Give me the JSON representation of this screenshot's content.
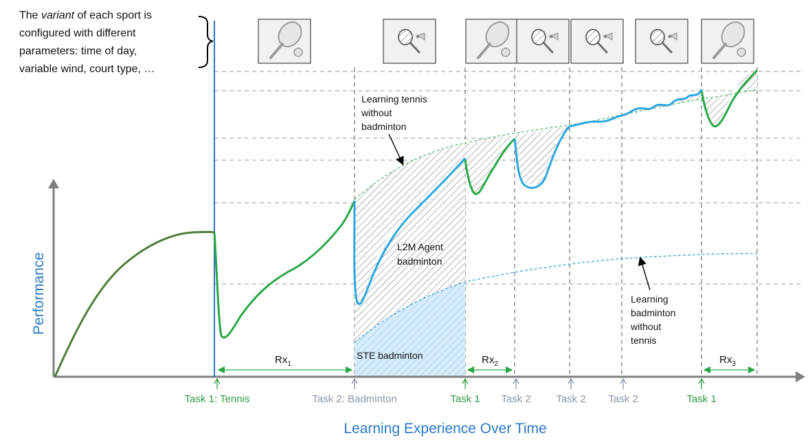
{
  "note": {
    "line1_pre": "The ",
    "line1_italic": "variant",
    "line1_post": " of each sport is",
    "line2": "configured with different",
    "line3": "parameters: time of day,",
    "line4": "variable wind, court type, …"
  },
  "axes": {
    "ylabel": "Performance",
    "xlabel": "Learning Experience Over Time"
  },
  "annotations": {
    "tennis_without_badminton": [
      "Learning tennis",
      "without",
      "badminton"
    ],
    "l2m_agent": [
      "L2M Agent",
      "badminton"
    ],
    "ste_badminton": "STE badminton",
    "badminton_without_tennis": [
      "Learning",
      "badminton",
      "without",
      "tennis"
    ]
  },
  "rx_labels": [
    {
      "base": "Rx",
      "sub": "1"
    },
    {
      "base": "Rx",
      "sub": "2"
    },
    {
      "base": "Rx",
      "sub": "3"
    }
  ],
  "tasks": [
    {
      "label": "Task 1: Tennis",
      "sport": "tennis"
    },
    {
      "label": "Task 2: Badminton",
      "sport": "badminton"
    },
    {
      "label": "Task 1",
      "sport": "tennis"
    },
    {
      "label": "Task 2",
      "sport": "badminton"
    },
    {
      "label": "Task 2",
      "sport": "badminton"
    },
    {
      "label": "Task 2",
      "sport": "badminton"
    },
    {
      "label": "Task 1",
      "sport": "tennis"
    }
  ],
  "icons": [
    "tennis-racket-icon",
    "badminton-racket-icon",
    "tennis-racket-icon",
    "badminton-racket-icon",
    "badminton-racket-icon",
    "badminton-racket-icon",
    "tennis-racket-icon"
  ],
  "colors": {
    "tennis": "#27a844",
    "badminton": "#2aa6e0",
    "initial": "#4f7d3a",
    "axis_label": "#2a78c4",
    "task_tennis": "#2f9a45",
    "task_badminton": "#8a93a8",
    "divider": "#2f6fc9"
  }
}
